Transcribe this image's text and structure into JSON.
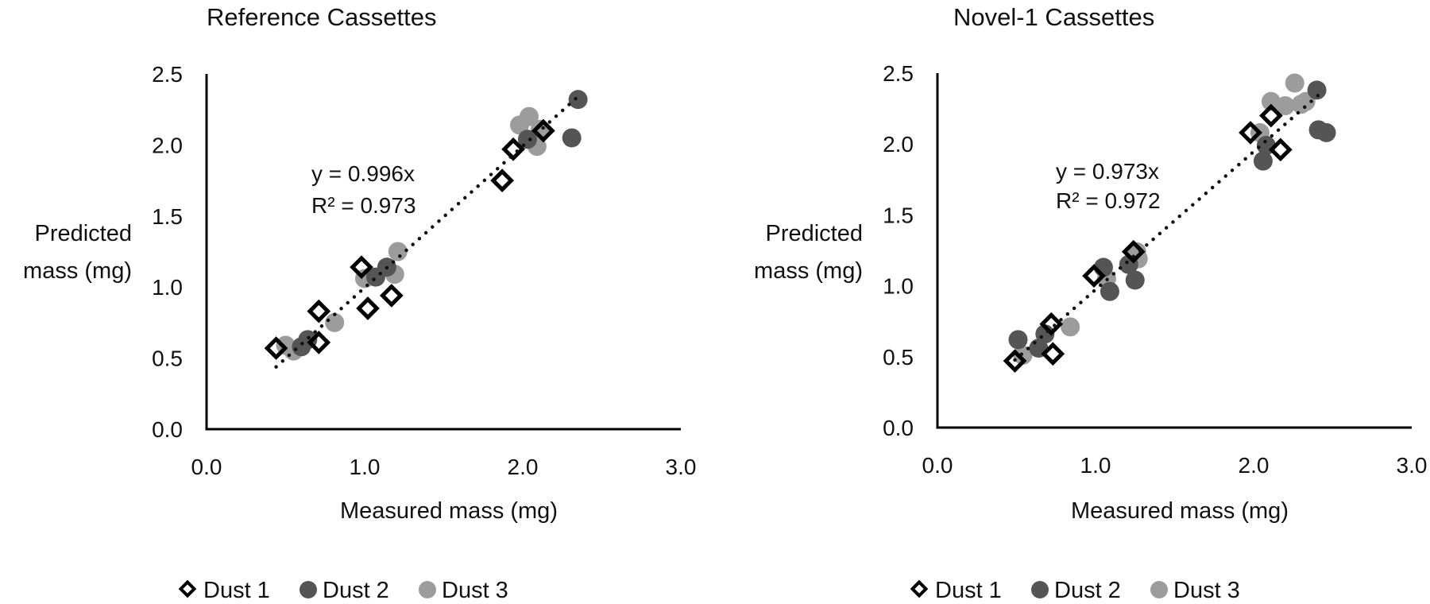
{
  "colors": {
    "dust1_stroke": "#000000",
    "dust1_fill": "#ffffff",
    "dust2": "#555555",
    "dust3": "#9c9c9c",
    "axis": "#000000",
    "trendline": "#111111"
  },
  "chart_data": [
    {
      "type": "scatter",
      "title": "Reference Cassettes",
      "xlabel": "Measured mass (mg)",
      "ylabel_lines": [
        "Predicted",
        "mass (mg)"
      ],
      "xlim": [
        0,
        3
      ],
      "ylim": [
        0,
        2.5
      ],
      "xticks": [
        "0.0",
        "1.0",
        "2.0",
        "3.0"
      ],
      "xtick_values": [
        0,
        1,
        2,
        3
      ],
      "yticks": [
        "0.0",
        "0.5",
        "1.0",
        "1.5",
        "2.0",
        "2.5"
      ],
      "ytick_values": [
        0,
        0.5,
        1,
        1.5,
        2,
        2.5
      ],
      "grid": false,
      "legend_position": "bottom",
      "trendline": {
        "slope": 0.996,
        "x_range": [
          0.44,
          2.35
        ],
        "style": "dotted"
      },
      "equation": {
        "line1": "y = 0.996x",
        "line2": "R² = 0.973"
      },
      "series": [
        {
          "name": "Dust 1",
          "marker": "diamond",
          "points": [
            [
              0.44,
              0.57
            ],
            [
              0.71,
              0.61
            ],
            [
              0.71,
              0.83
            ],
            [
              1.02,
              0.85
            ],
            [
              1.17,
              0.94
            ],
            [
              0.98,
              1.14
            ],
            [
              1.87,
              1.75
            ],
            [
              1.94,
              1.97
            ],
            [
              2.13,
              2.1
            ]
          ]
        },
        {
          "name": "Dust 2",
          "marker": "circle",
          "points": [
            [
              0.64,
              0.63
            ],
            [
              0.6,
              0.58
            ],
            [
              1.07,
              1.07
            ],
            [
              1.14,
              1.14
            ],
            [
              2.03,
              2.04
            ],
            [
              2.31,
              2.05
            ],
            [
              2.35,
              2.32
            ]
          ]
        },
        {
          "name": "Dust 3",
          "marker": "circle",
          "points": [
            [
              0.5,
              0.59
            ],
            [
              0.55,
              0.55
            ],
            [
              0.81,
              0.75
            ],
            [
              1.0,
              1.06
            ],
            [
              1.19,
              1.09
            ],
            [
              1.21,
              1.25
            ],
            [
              1.98,
              2.14
            ],
            [
              2.04,
              2.2
            ],
            [
              2.09,
              1.99
            ],
            [
              2.11,
              2.11
            ]
          ]
        }
      ],
      "legend": [
        "Dust 1",
        "Dust 2",
        "Dust 3"
      ]
    },
    {
      "type": "scatter",
      "title": "Novel-1 Cassettes",
      "xlabel": "Measured mass (mg)",
      "ylabel_lines": [
        "Predicted",
        "mass (mg)"
      ],
      "xlim": [
        0,
        3
      ],
      "ylim": [
        0,
        2.5
      ],
      "xticks": [
        "0.0",
        "1.0",
        "2.0",
        "3.0"
      ],
      "xtick_values": [
        0,
        1,
        2,
        3
      ],
      "yticks": [
        "0.0",
        "0.5",
        "1.0",
        "1.5",
        "2.0",
        "2.5"
      ],
      "ytick_values": [
        0,
        0.5,
        1,
        1.5,
        2,
        2.5
      ],
      "grid": false,
      "legend_position": "bottom",
      "trendline": {
        "slope": 0.973,
        "x_range": [
          0.49,
          2.42
        ],
        "style": "dotted"
      },
      "equation": {
        "line1": "y = 0.973x",
        "line2": "R² = 0.972"
      },
      "series": [
        {
          "name": "Dust 1",
          "marker": "diamond",
          "points": [
            [
              0.49,
              0.47
            ],
            [
              0.73,
              0.52
            ],
            [
              0.72,
              0.73
            ],
            [
              0.99,
              1.07
            ],
            [
              1.24,
              1.24
            ],
            [
              1.98,
              2.08
            ],
            [
              2.11,
              2.2
            ],
            [
              2.17,
              1.96
            ]
          ]
        },
        {
          "name": "Dust 2",
          "marker": "circle",
          "points": [
            [
              0.51,
              0.62
            ],
            [
              0.64,
              0.56
            ],
            [
              0.68,
              0.66
            ],
            [
              1.05,
              1.13
            ],
            [
              1.09,
              0.96
            ],
            [
              1.21,
              1.15
            ],
            [
              1.25,
              1.04
            ],
            [
              2.06,
              1.88
            ],
            [
              2.08,
              1.99
            ],
            [
              2.4,
              2.38
            ],
            [
              2.41,
              2.1
            ],
            [
              2.46,
              2.08
            ]
          ]
        },
        {
          "name": "Dust 3",
          "marker": "circle",
          "points": [
            [
              0.54,
              0.51
            ],
            [
              0.84,
              0.71
            ],
            [
              1.07,
              1.05
            ],
            [
              1.26,
              1.24
            ],
            [
              1.27,
              1.19
            ],
            [
              2.04,
              2.08
            ],
            [
              2.11,
              2.3
            ],
            [
              2.2,
              2.27
            ],
            [
              2.26,
              2.43
            ],
            [
              2.3,
              2.28
            ],
            [
              2.33,
              2.3
            ]
          ]
        }
      ],
      "legend": [
        "Dust 1",
        "Dust 2",
        "Dust 3"
      ]
    }
  ]
}
